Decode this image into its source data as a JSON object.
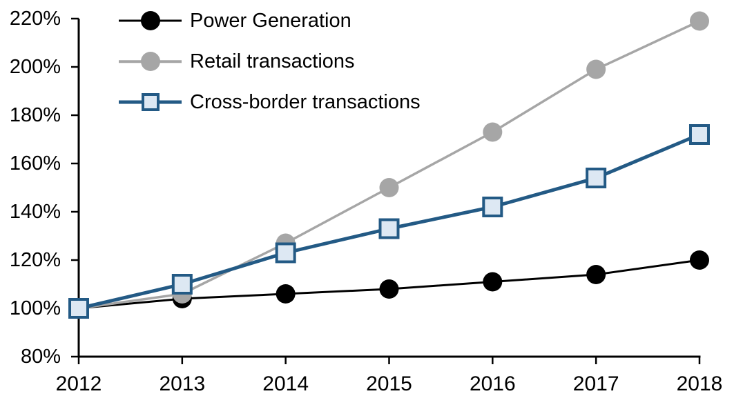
{
  "chart_data": {
    "type": "line",
    "title": "",
    "xlabel": "",
    "ylabel": "",
    "categories": [
      "2012",
      "2013",
      "2014",
      "2015",
      "2016",
      "2017",
      "2018"
    ],
    "series": [
      {
        "name": "Power Generation",
        "values": [
          100,
          104,
          106,
          108,
          111,
          114,
          120
        ],
        "color": "#000000",
        "line_width": 3,
        "marker": "circle",
        "marker_fill": "#000000"
      },
      {
        "name": "Retail transactions",
        "values": [
          100,
          106,
          127,
          150,
          173,
          199,
          219
        ],
        "color": "#A6A6A6",
        "line_width": 3.5,
        "marker": "circle",
        "marker_fill": "#A6A6A6"
      },
      {
        "name": "Cross-border transactions",
        "values": [
          100,
          110,
          123,
          133,
          142,
          154,
          172
        ],
        "color": "#235A85",
        "line_width": 5,
        "marker": "square",
        "marker_fill": "#DDE8F3",
        "marker_border": "#235A85"
      }
    ],
    "ylim": [
      80,
      220
    ],
    "y_ticks": [
      80,
      100,
      120,
      140,
      160,
      180,
      200,
      220
    ],
    "y_tick_labels": [
      "80%",
      "100%",
      "120%",
      "140%",
      "160%",
      "180%",
      "200%",
      "220%"
    ],
    "x_tick_labels": [
      "2012",
      "2013",
      "2014",
      "2015",
      "2016",
      "2017",
      "2018"
    ],
    "grid": false,
    "legend_position": "top-left-inside",
    "axis_color": "#000000"
  }
}
